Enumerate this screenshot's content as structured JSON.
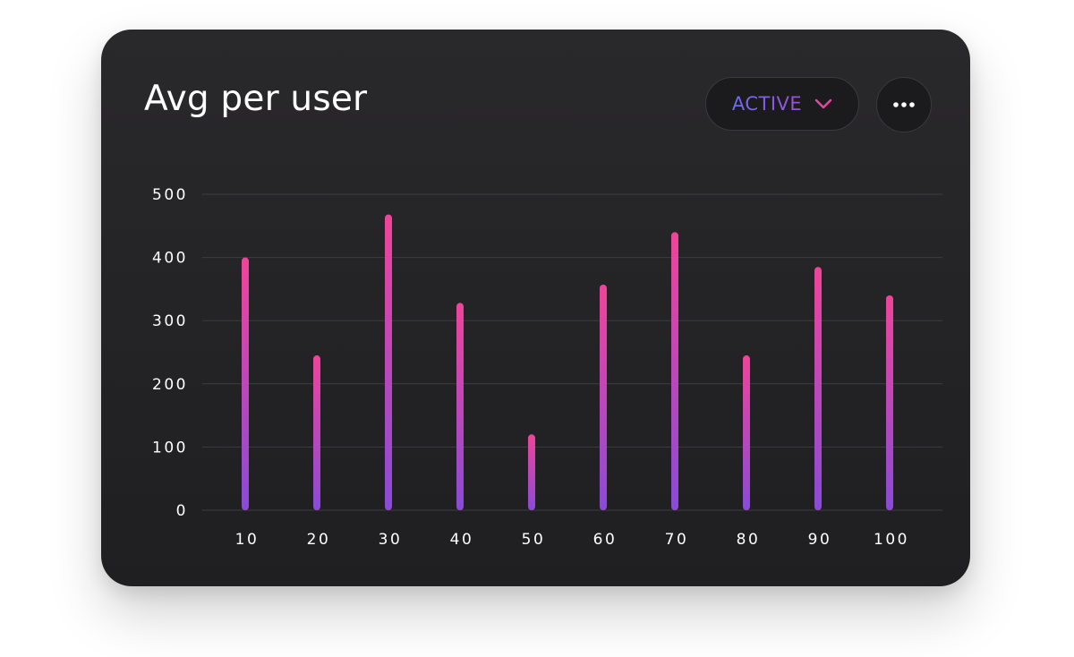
{
  "card": {
    "title": "Avg per user",
    "filter_label": "ACTIVE",
    "more_icon": "more-horizontal-icon",
    "chevron_icon": "chevron-down-icon"
  },
  "colors": {
    "card_bg": "#242326",
    "bar_top": "#f0449a",
    "bar_bottom": "#8a4bd6",
    "grid": "#3d3c40",
    "text": "#ffffff",
    "filter_gradient_start": "#6e6cf0",
    "filter_gradient_end": "#9b4fd8",
    "chevron": "#e0489f"
  },
  "chart_data": {
    "type": "bar",
    "title": "Avg per user",
    "xlabel": "",
    "ylabel": "",
    "categories": [
      "10",
      "20",
      "30",
      "40",
      "50",
      "60",
      "70",
      "80",
      "90",
      "100"
    ],
    "values": [
      400,
      245,
      468,
      328,
      120,
      357,
      440,
      245,
      385,
      340
    ],
    "ylim": [
      0,
      500
    ],
    "yticks": [
      "0",
      "100",
      "200",
      "300",
      "400",
      "500"
    ],
    "grid": true,
    "legend": "none"
  }
}
